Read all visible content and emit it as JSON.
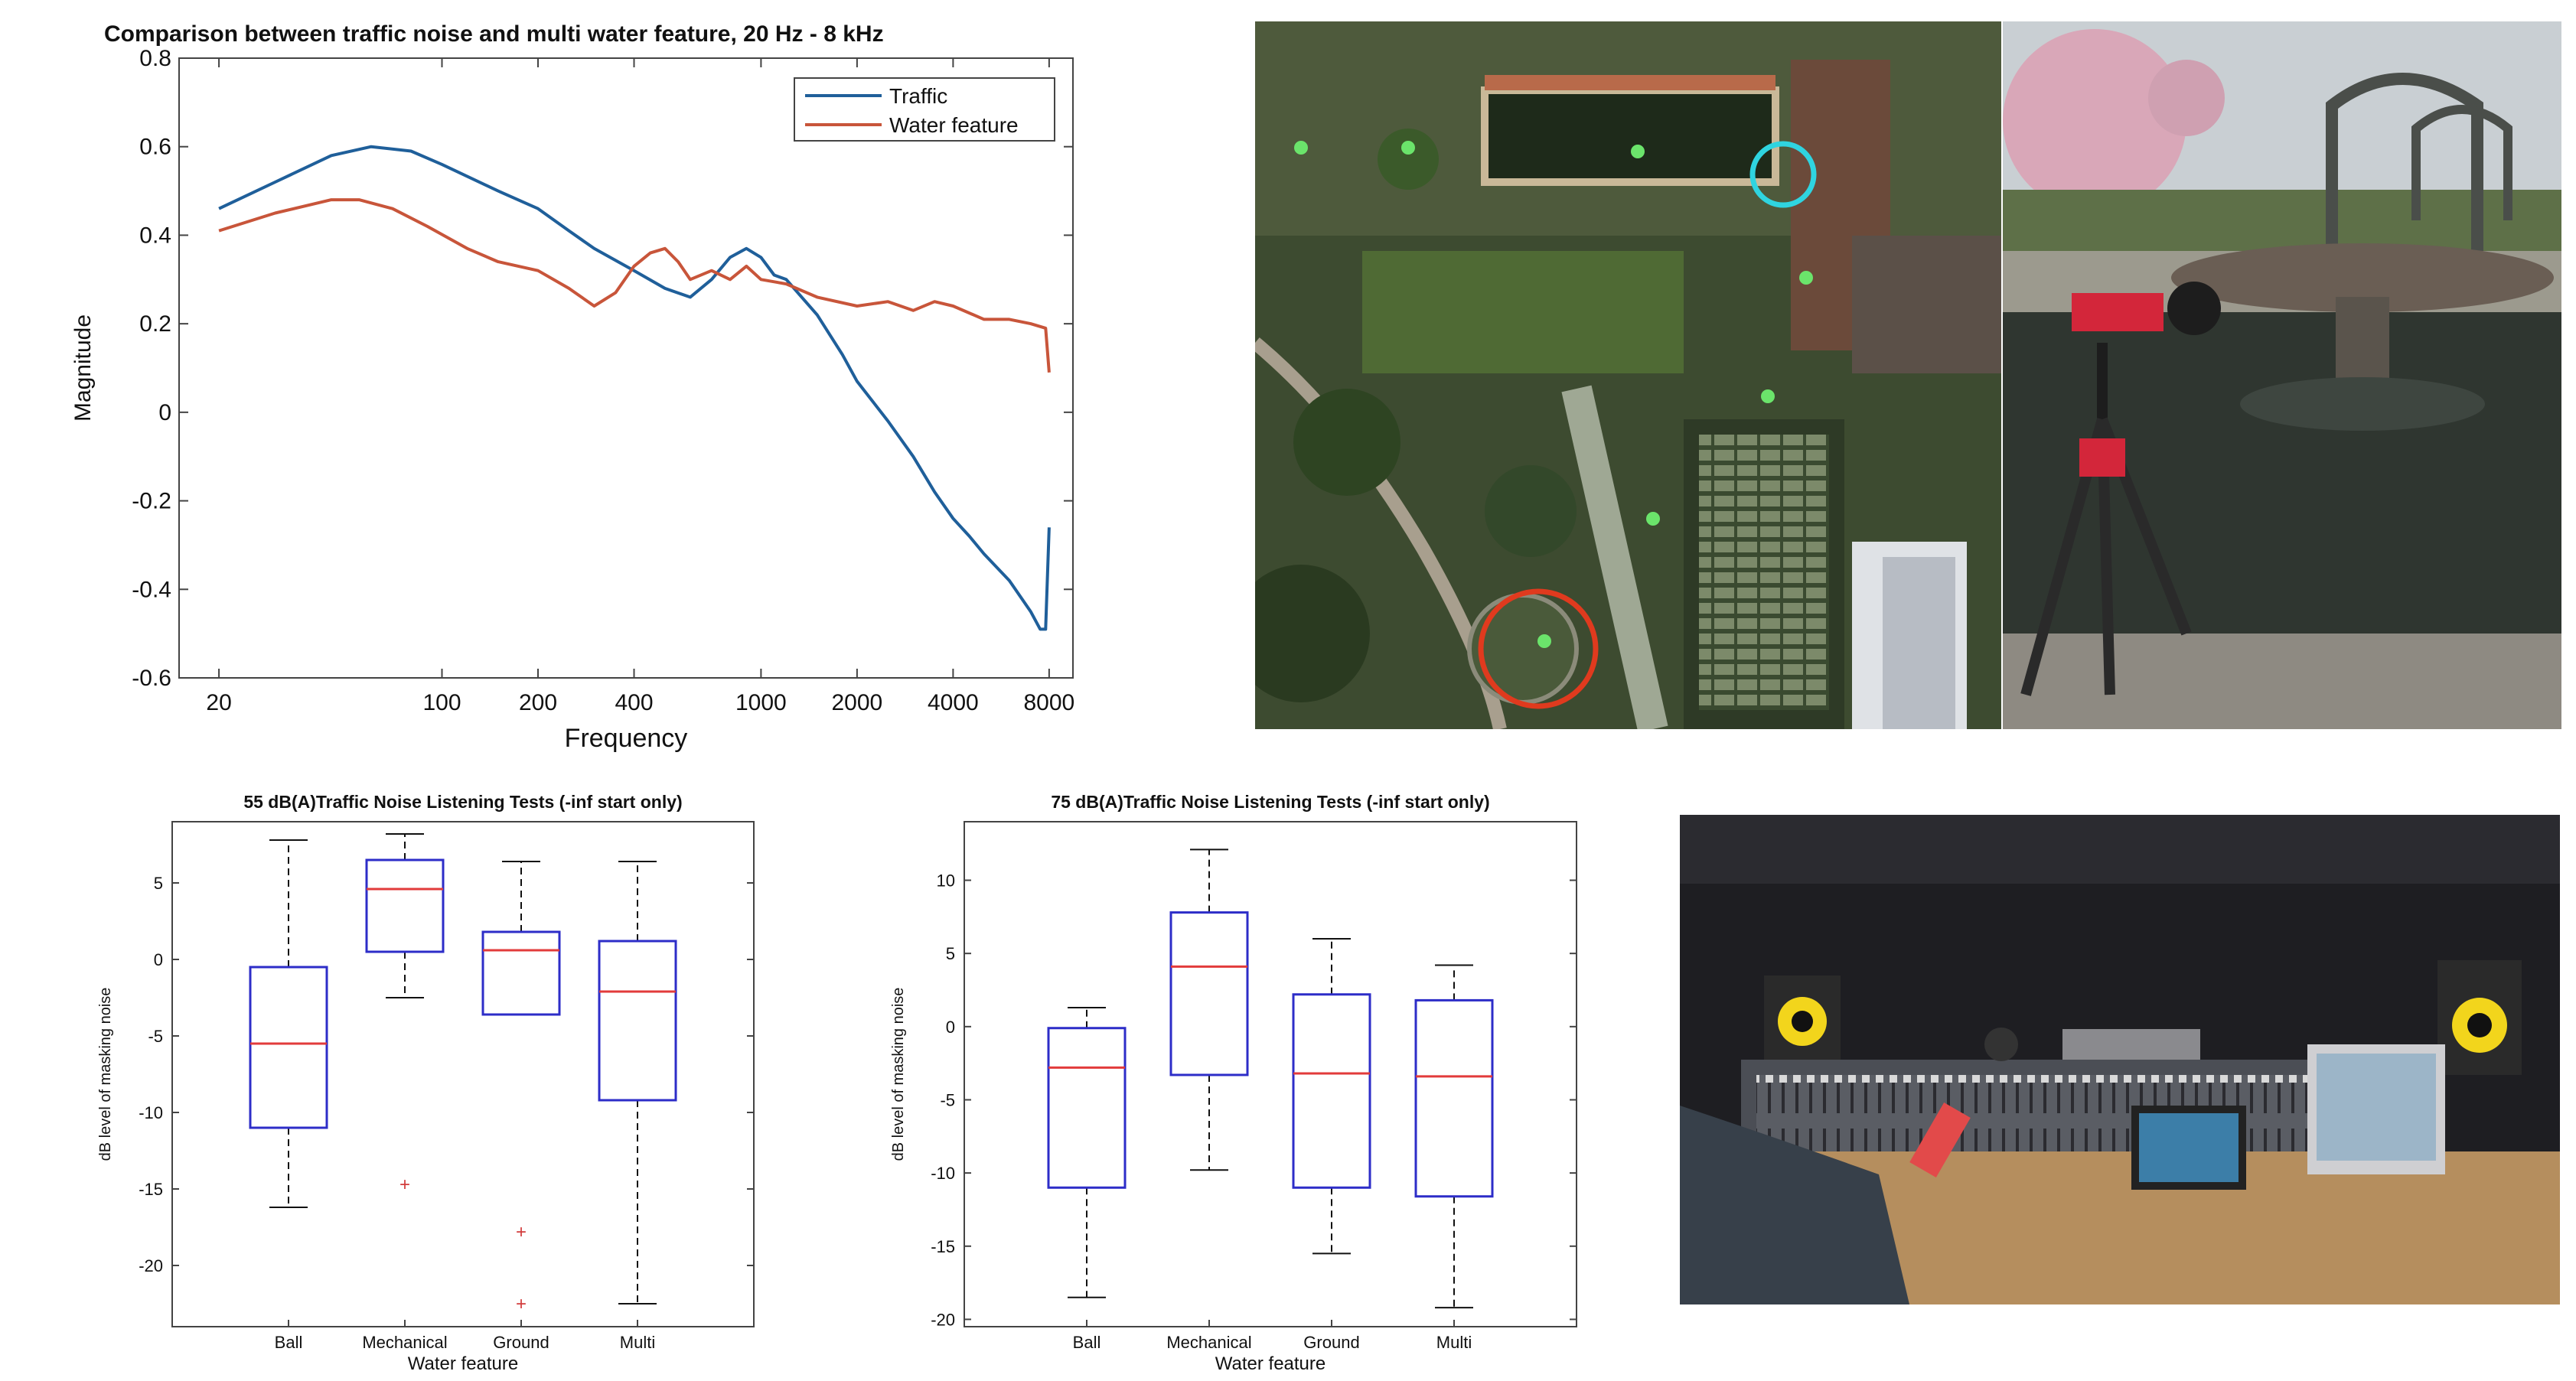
{
  "colors": {
    "traffic": "#1f5f9a",
    "water": "#c8553a",
    "box": "#2d2dc8",
    "median": "#e23b3b",
    "outlier": "#d23c3c"
  },
  "spectrum": {
    "title": "Comparison between traffic noise and multi water feature, 20 Hz - 8 kHz",
    "xlabel": "Frequency",
    "ylabel": "Magnitude",
    "legend": [
      "Traffic",
      "Water feature"
    ]
  },
  "box55": {
    "title": "55 dB(A)Traffic Noise Listening Tests (-inf start only)",
    "xlabel": "Water feature",
    "ylabel": "dB level of masking noise"
  },
  "box75": {
    "title": "75 dB(A)Traffic Noise Listening Tests (-inf start only)",
    "xlabel": "Water feature",
    "ylabel": "dB level of masking noise"
  },
  "photos": {
    "aerial": "aerial-map-photo",
    "fountain": "fountain-tripod-photo",
    "studio": "studio-listening-photo"
  },
  "chart_data": [
    {
      "type": "line",
      "title": "Comparison between traffic noise and multi water feature, 20 Hz - 8 kHz",
      "xlabel": "Frequency",
      "ylabel": "Magnitude",
      "xscale": "log",
      "xlim": [
        15,
        9500
      ],
      "ylim": [
        -0.6,
        0.8
      ],
      "xticks": [
        20,
        100,
        200,
        400,
        1000,
        2000,
        4000,
        8000
      ],
      "yticks": [
        -0.6,
        -0.4,
        -0.2,
        0,
        0.2,
        0.4,
        0.6,
        0.8
      ],
      "legend_position": "top-right",
      "series": [
        {
          "name": "Traffic",
          "points": [
            [
              20,
              0.46
            ],
            [
              30,
              0.52
            ],
            [
              45,
              0.58
            ],
            [
              60,
              0.6
            ],
            [
              80,
              0.59
            ],
            [
              100,
              0.56
            ],
            [
              150,
              0.5
            ],
            [
              200,
              0.46
            ],
            [
              250,
              0.41
            ],
            [
              300,
              0.37
            ],
            [
              400,
              0.32
            ],
            [
              500,
              0.28
            ],
            [
              600,
              0.26
            ],
            [
              700,
              0.3
            ],
            [
              800,
              0.35
            ],
            [
              900,
              0.37
            ],
            [
              1000,
              0.35
            ],
            [
              1100,
              0.31
            ],
            [
              1200,
              0.3
            ],
            [
              1500,
              0.22
            ],
            [
              1800,
              0.13
            ],
            [
              2000,
              0.07
            ],
            [
              2500,
              -0.02
            ],
            [
              3000,
              -0.1
            ],
            [
              3500,
              -0.18
            ],
            [
              4000,
              -0.24
            ],
            [
              4500,
              -0.28
            ],
            [
              5000,
              -0.32
            ],
            [
              6000,
              -0.38
            ],
            [
              7000,
              -0.45
            ],
            [
              7500,
              -0.49
            ],
            [
              7800,
              -0.49
            ],
            [
              8000,
              -0.26
            ]
          ]
        },
        {
          "name": "Water feature",
          "points": [
            [
              20,
              0.41
            ],
            [
              30,
              0.45
            ],
            [
              45,
              0.48
            ],
            [
              55,
              0.48
            ],
            [
              70,
              0.46
            ],
            [
              90,
              0.42
            ],
            [
              120,
              0.37
            ],
            [
              150,
              0.34
            ],
            [
              200,
              0.32
            ],
            [
              250,
              0.28
            ],
            [
              300,
              0.24
            ],
            [
              350,
              0.27
            ],
            [
              400,
              0.33
            ],
            [
              450,
              0.36
            ],
            [
              500,
              0.37
            ],
            [
              550,
              0.34
            ],
            [
              600,
              0.3
            ],
            [
              700,
              0.32
            ],
            [
              800,
              0.3
            ],
            [
              900,
              0.33
            ],
            [
              1000,
              0.3
            ],
            [
              1200,
              0.29
            ],
            [
              1500,
              0.26
            ],
            [
              2000,
              0.24
            ],
            [
              2500,
              0.25
            ],
            [
              3000,
              0.23
            ],
            [
              3500,
              0.25
            ],
            [
              4000,
              0.24
            ],
            [
              5000,
              0.21
            ],
            [
              6000,
              0.21
            ],
            [
              7000,
              0.2
            ],
            [
              7800,
              0.19
            ],
            [
              8000,
              0.09
            ]
          ]
        }
      ]
    },
    {
      "type": "box",
      "title": "55 dB(A)Traffic Noise Listening Tests (-inf start only)",
      "xlabel": "Water feature",
      "ylabel": "dB level of masking noise",
      "ylim": [
        -24,
        9
      ],
      "yticks": [
        -20,
        -15,
        -10,
        -5,
        0,
        5
      ],
      "categories": [
        "Ball",
        "Mechanical",
        "Ground",
        "Multi"
      ],
      "boxes": [
        {
          "q1": -11,
          "median": -5.5,
          "q3": -0.5,
          "whisker_low": -16.2,
          "whisker_high": 7.8,
          "outliers": []
        },
        {
          "q1": 0.5,
          "median": 4.6,
          "q3": 6.5,
          "whisker_low": -2.5,
          "whisker_high": 8.2,
          "outliers": [
            -14.7
          ]
        },
        {
          "q1": -3.6,
          "median": 0.6,
          "q3": 1.8,
          "whisker_low": -3.6,
          "whisker_high": 6.4,
          "outliers": [
            -17.8,
            -22.5
          ]
        },
        {
          "q1": -9.2,
          "median": -2.1,
          "q3": 1.2,
          "whisker_low": -22.5,
          "whisker_high": 6.4,
          "outliers": []
        }
      ]
    },
    {
      "type": "box",
      "title": "75 dB(A)Traffic Noise Listening Tests (-inf start only)",
      "xlabel": "Water feature",
      "ylabel": "dB level of masking noise",
      "ylim": [
        -20.5,
        14
      ],
      "yticks": [
        -20,
        -15,
        -10,
        -5,
        0,
        5,
        10
      ],
      "categories": [
        "Ball",
        "Mechanical",
        "Ground",
        "Multi"
      ],
      "boxes": [
        {
          "q1": -11,
          "median": -2.8,
          "q3": -0.1,
          "whisker_low": -18.5,
          "whisker_high": 1.3,
          "outliers": []
        },
        {
          "q1": -3.3,
          "median": 4.1,
          "q3": 7.8,
          "whisker_low": -9.8,
          "whisker_high": 12.1,
          "outliers": []
        },
        {
          "q1": -11,
          "median": -3.2,
          "q3": 2.2,
          "whisker_low": -15.5,
          "whisker_high": 6,
          "outliers": []
        },
        {
          "q1": -11.6,
          "median": -3.4,
          "q3": 1.8,
          "whisker_low": -19.2,
          "whisker_high": 4.2,
          "outliers": []
        }
      ]
    }
  ]
}
